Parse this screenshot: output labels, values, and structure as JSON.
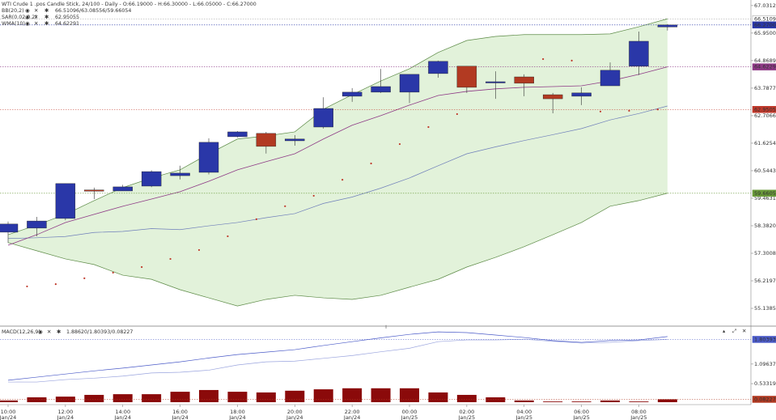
{
  "chart_data": {
    "type": "candlestick",
    "title": "WTI Crude 1 .pos",
    "subtitle": "Candle Stick, 24/100 - Daily - O:66.19000 - H:66.30000 - L:66.05000 - C:66.27000",
    "categories": [
      "10:00",
      null,
      "12:00",
      null,
      "14:00",
      null,
      "16:00",
      null,
      "18:00",
      null,
      "20:00",
      null,
      "22:00",
      null,
      "00:00",
      null,
      "02:00",
      null,
      "04:00",
      null,
      "06:00",
      null,
      "08:00",
      null
    ],
    "dates": [
      "Jan/24",
      null,
      "Jan/24",
      null,
      "Jan/24",
      null,
      "Jan/24",
      null,
      "Jan/24",
      null,
      "Jan/24",
      null,
      "Jan/24",
      null,
      "Jan/25",
      null,
      "Jan/25",
      null,
      "Jan/25",
      null,
      "Jan/25",
      null,
      "Jan/25",
      null
    ],
    "open": [
      58.13,
      58.29,
      58.67,
      59.79,
      59.75,
      59.94,
      60.35,
      60.48,
      61.88,
      62.01,
      61.72,
      62.26,
      63.47,
      63.63,
      63.63,
      64.36,
      64.65,
      64.01,
      64.23,
      63.53,
      63.47,
      63.88,
      64.65,
      66.19
    ],
    "high": [
      58.55,
      58.73,
      60.04,
      59.88,
      59.99,
      60.56,
      60.74,
      61.82,
      62.1,
      62.07,
      61.94,
      63.43,
      63.79,
      64.54,
      64.33,
      64.87,
      64.65,
      64.45,
      64.33,
      63.6,
      63.82,
      64.8,
      66.01,
      66.3
    ],
    "low": [
      57.71,
      57.97,
      58.6,
      59.43,
      59.75,
      59.9,
      60.2,
      60.4,
      61.85,
      61.22,
      61.53,
      62.2,
      63.25,
      63.6,
      63.2,
      64.2,
      63.6,
      63.37,
      63.47,
      62.8,
      63.12,
      63.88,
      64.3,
      66.05
    ],
    "close": [
      58.45,
      58.57,
      60.04,
      59.76,
      59.91,
      60.51,
      60.45,
      61.66,
      62.07,
      61.5,
      61.79,
      62.99,
      63.63,
      63.85,
      64.33,
      64.84,
      63.82,
      64.04,
      63.98,
      63.37,
      63.6,
      64.49,
      65.63,
      66.27
    ],
    "up_color": "#2a37a8",
    "down_color": "#b23a22",
    "ylim": [
      54.44,
      67.25
    ],
    "yticks": [
      67.03123,
      65.95008,
      64.86893,
      63.78778,
      62.70663,
      61.62548,
      60.54433,
      59.46318,
      58.38203,
      57.30088,
      56.21973,
      55.13858
    ],
    "bands": {
      "name": "BB(20,2)",
      "value_text": "66.51096/63.08556/59.66054",
      "color": "#5c8a46",
      "fill": "#e2f2da",
      "mid_color": "#6f7fba",
      "upper": [
        58.03,
        58.41,
        58.83,
        59.37,
        59.88,
        60.26,
        60.58,
        61.21,
        61.79,
        61.91,
        62.07,
        62.96,
        63.53,
        64.07,
        64.55,
        65.19,
        65.66,
        65.82,
        65.89,
        65.89,
        65.89,
        65.92,
        66.2,
        66.51096
      ],
      "middle": [
        57.88,
        57.91,
        57.96,
        58.12,
        58.16,
        58.27,
        58.23,
        58.38,
        58.51,
        58.7,
        58.86,
        59.26,
        59.51,
        59.86,
        60.26,
        60.74,
        61.21,
        61.48,
        61.73,
        61.96,
        62.2,
        62.54,
        62.79,
        63.08556
      ],
      "lower": [
        57.72,
        57.4,
        57.08,
        56.86,
        56.44,
        56.28,
        55.87,
        55.55,
        55.23,
        55.49,
        55.65,
        55.55,
        55.49,
        55.65,
        55.97,
        56.28,
        56.76,
        57.14,
        57.56,
        58.03,
        58.51,
        59.15,
        59.37,
        59.66054
      ]
    },
    "sar": {
      "name": "SAR(0.02,0.2)",
      "value_text": "62.95055",
      "color": "#c0392b",
      "values": [
        null,
        56.0,
        56.09,
        56.32,
        56.54,
        56.76,
        57.08,
        57.43,
        57.97,
        58.64,
        59.15,
        59.56,
        60.19,
        60.83,
        61.59,
        62.26,
        62.77,
        null,
        null,
        64.93,
        64.87,
        62.87,
        62.9,
        62.95055
      ]
    },
    "wma": {
      "name": "WMA(10)",
      "value_text": "64.62291",
      "color": "#8e3a86",
      "values": [
        57.62,
        58.03,
        58.51,
        58.83,
        59.15,
        59.43,
        59.72,
        60.13,
        60.58,
        60.9,
        61.21,
        61.79,
        62.33,
        62.71,
        63.12,
        63.5,
        63.66,
        63.76,
        63.82,
        63.85,
        63.88,
        64.07,
        64.33,
        64.62291
      ]
    },
    "price_markers": [
      {
        "value": 66.51096,
        "label": "66.51096",
        "color": "#ffffff"
      },
      {
        "value": 66.27,
        "label": "66.27000",
        "color": "#2a37a8"
      },
      {
        "value": 64.62291,
        "label": "64.62291",
        "color": "#8e3a86"
      },
      {
        "value": 62.95055,
        "label": "62.95055",
        "color": "#c0392b"
      },
      {
        "value": 59.66054,
        "label": "59.66054",
        "color": "#6a9a3a"
      }
    ],
    "macd": {
      "name": "MACD(12,26,9)",
      "value_text": "1.88620/1.80393/0.08227",
      "ylim": [
        -0.07,
        2.14
      ],
      "yticks": [
        1.09637,
        0.53319
      ],
      "macd_color": "#4b5bc8",
      "signal_color": "#9aa4de",
      "hist_color": "#8b0a0a",
      "macd": [
        0.63,
        0.72,
        0.81,
        0.9,
        0.98,
        1.07,
        1.16,
        1.27,
        1.37,
        1.44,
        1.51,
        1.63,
        1.74,
        1.85,
        1.95,
        2.02,
        2.0,
        1.93,
        1.86,
        1.77,
        1.72,
        1.77,
        1.79,
        1.8862
      ],
      "signal": [
        0.58,
        0.58,
        0.65,
        0.69,
        0.75,
        0.84,
        0.86,
        0.92,
        1.07,
        1.16,
        1.18,
        1.26,
        1.34,
        1.45,
        1.55,
        1.74,
        1.79,
        1.79,
        1.81,
        1.75,
        1.7,
        1.72,
        1.77,
        1.80393
      ],
      "histogram": [
        0.05,
        0.14,
        0.16,
        0.21,
        0.23,
        0.23,
        0.3,
        0.35,
        0.3,
        0.28,
        0.33,
        0.37,
        0.4,
        0.4,
        0.4,
        0.28,
        0.21,
        0.14,
        0.05,
        0.02,
        0.02,
        0.05,
        0.02,
        0.08227
      ],
      "markers": [
        {
          "value": 1.80393,
          "label": "1.80393",
          "color": "#4b5bc8"
        },
        {
          "value": 0.08227,
          "label": "0.08227",
          "color": "#b23a22"
        }
      ]
    }
  }
}
